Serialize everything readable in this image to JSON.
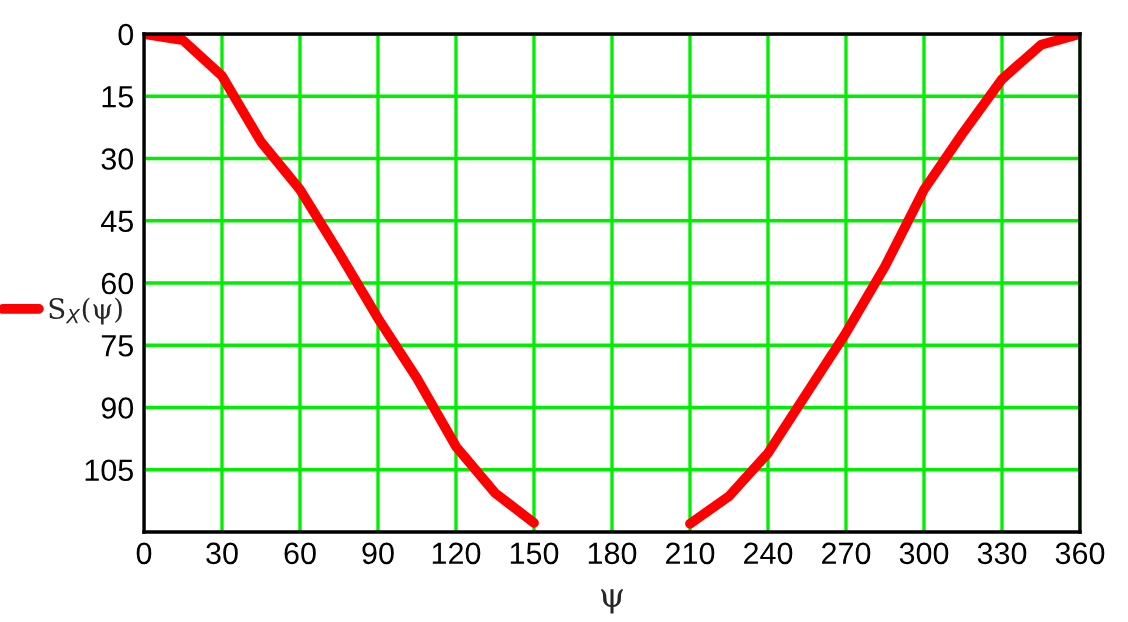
{
  "chart_data": {
    "type": "line",
    "xlabel": "ψ",
    "x": [
      0,
      15,
      30,
      45,
      60,
      75,
      90,
      105,
      120,
      135,
      150,
      180,
      210,
      225,
      240,
      255,
      270,
      285,
      300,
      315,
      330,
      345,
      360
    ],
    "series": [
      {
        "name": "S$_{X}$(ψ)",
        "color": "#ff0000",
        "values": [
          0,
          1.5,
          10.1,
          26,
          37.5,
          52.7,
          68.5,
          83,
          99.4,
          110.6,
          117.8,
          null,
          118,
          111.4,
          101,
          86.5,
          72,
          56,
          37.5,
          23.8,
          10.9,
          2.6,
          0
        ]
      }
    ],
    "xlim": [
      0,
      360
    ],
    "xticks": [
      0,
      30,
      60,
      90,
      120,
      150,
      180,
      210,
      240,
      270,
      300,
      330,
      360
    ],
    "ylim": [
      120,
      0
    ],
    "yticks": [
      0,
      15,
      30,
      45,
      60,
      75,
      90,
      105
    ],
    "grid": true,
    "legend": "left",
    "marker": "none",
    "line_style": "solid"
  }
}
